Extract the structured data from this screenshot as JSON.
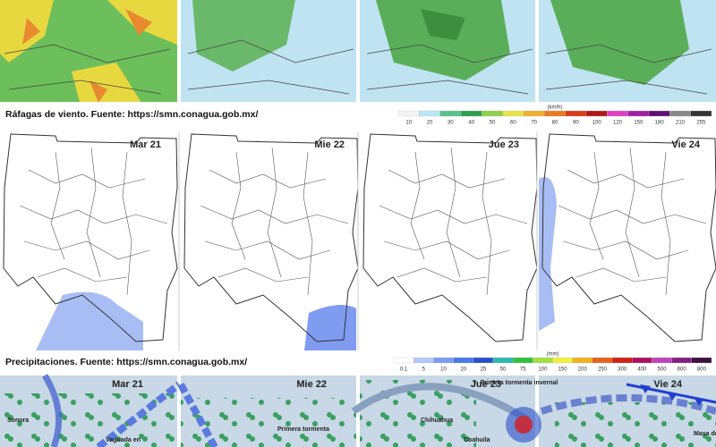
{
  "wind": {
    "caption": "Ráfagas de viento.  Fuente: https://smn.conagua.gob.mx/",
    "unit": "(km/h)",
    "ticks": [
      10,
      20,
      30,
      40,
      50,
      60,
      70,
      80,
      90,
      100,
      120,
      150,
      180,
      210,
      255
    ],
    "colors": [
      "#f4f4f4",
      "#b9e6f2",
      "#5cc08c",
      "#2e9e50",
      "#8fcf4a",
      "#e8e24a",
      "#f0b030",
      "#e87a20",
      "#d83a1a",
      "#b01818",
      "#e040c0",
      "#a020a0",
      "#601070",
      "#888888",
      "#333333"
    ]
  },
  "precip": {
    "caption": "Precipitaciones.  Fuente: https://smn.conagua.gob.mx/",
    "unit": "(mm)",
    "ticks": [
      0.1,
      5,
      10,
      20,
      25,
      50,
      75,
      100,
      150,
      200,
      250,
      300,
      400,
      500,
      600,
      800
    ],
    "colors": [
      "#ffffff",
      "#b4c8f8",
      "#7a9cf0",
      "#4a78e8",
      "#2a50c8",
      "#30b8b0",
      "#30c040",
      "#a0e040",
      "#f0f040",
      "#f0b020",
      "#e86018",
      "#d02018",
      "#b01060",
      "#c040c0",
      "#802080",
      "#401040"
    ]
  },
  "days": [
    "Mar 21",
    "Mie 22",
    "Jue 23",
    "Vie 24"
  ],
  "forecast": {
    "days": [
      "Mar 21",
      "Mie 22",
      "Jue 23",
      "Vie 24"
    ],
    "notes": [
      "Vaguada en",
      "Primera tormenta",
      "Primera tormenta invernal",
      "Chihuahua",
      "Coahuila",
      "Sonora",
      "Masa de"
    ]
  }
}
